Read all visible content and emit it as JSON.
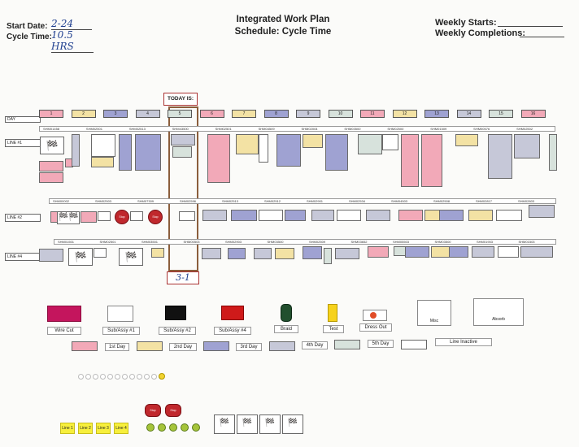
{
  "header": {
    "start_date_label": "Start Date:",
    "start_date_value": "2-24",
    "cycle_time_label": "Cycle Time:",
    "cycle_time_value": "10.5 HRS",
    "title_line1": "Integrated Work Plan",
    "title_line2": "Schedule:  Cycle Time",
    "weekly_starts_label": "Weekly Starts:",
    "weekly_completions_label": "Weekly Completions:"
  },
  "today_label": "TODAY IS:",
  "today_value": "3-1",
  "day_label": "DAY",
  "days": [
    "1",
    "2",
    "3",
    "4",
    "5",
    "6",
    "7",
    "8",
    "9",
    "10",
    "11",
    "12",
    "13",
    "14",
    "15",
    "16"
  ],
  "colors": {
    "day1": "#f2a9b8",
    "day2": "#f3e2a4",
    "day3": "#9fa2d2",
    "day4": "#c6c8d8",
    "day5": "#d7e2dc",
    "wire_cut": "#c4155d",
    "sub_assy_1": "#ffffff",
    "sub_assy_2": "#111111",
    "sub_assy_4": "#cf1a1a",
    "braid": "#224f2e",
    "test": "#f6d21c",
    "dress_out": "#e14d27"
  },
  "lines": [
    {
      "label": "LINE #1",
      "jobs": [
        "SHM01458",
        "SHM02501",
        "SHM02513",
        "SHM43500",
        "SHM02501",
        "SHM04509",
        "SHM02004",
        "SHM03500",
        "SHM02500",
        "SHM01509",
        "SHM00576",
        "SHM02502"
      ]
    },
    {
      "label": "LINE #2",
      "jobs": [
        "SHM00002",
        "SHM02503",
        "SHM07309",
        "SHM02596",
        "SHM02513",
        "SHM02512",
        "SHM02901",
        "SHM02534",
        "SHM04503",
        "SHM02508",
        "SHM02817",
        "SHM02803"
      ]
    },
    {
      "label": "LINE #4",
      "jobs": [
        "SHM01501",
        "SHM02501",
        "SHM03501",
        "SHM00503",
        "SHM02903",
        "SHM03500",
        "SHM02509",
        "SHM03652",
        "SHM05503",
        "SHM03500",
        "SHM01903",
        "SHM01503"
      ]
    }
  ],
  "legend": {
    "items": [
      "Wire Cut",
      "Sub/Assy #1",
      "Sub/Assy #2",
      "Sub/Assy #4",
      "Braid",
      "Test",
      "Dress Out",
      "Misc",
      "Absorb"
    ],
    "days": [
      "1st Day",
      "2nd Day",
      "3rd Day",
      "4th Day",
      "5th Day",
      "Line Inactive"
    ]
  },
  "stop_text": "Stop",
  "sticky_labels": [
    "Line 1",
    "Line 2",
    "Line 3",
    "Line 4"
  ]
}
